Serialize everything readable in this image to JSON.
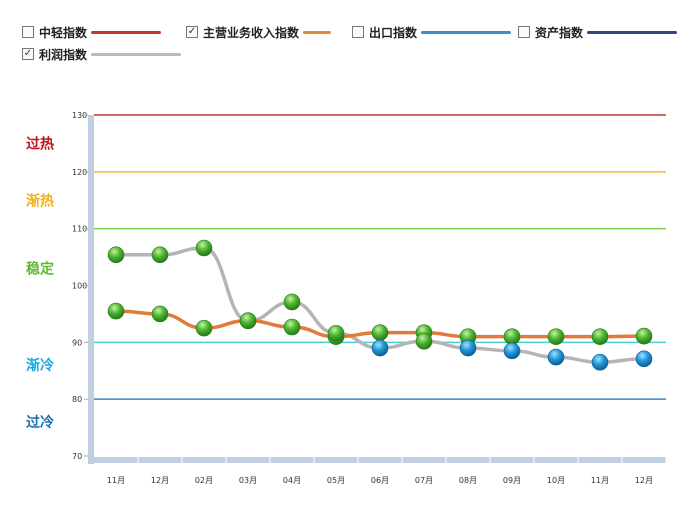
{
  "legend": [
    {
      "label": "中轻指数",
      "checked": false,
      "color": "#c0392b"
    },
    {
      "label": "主营业务收入指数",
      "checked": true,
      "color": "#e08a3c"
    },
    {
      "label": "出口指数",
      "checked": false,
      "color": "#3a8fcf"
    },
    {
      "label": "资产指数",
      "checked": false,
      "color": "#2c4a7c"
    },
    {
      "label": "利润指数",
      "checked": true,
      "color": "#bbbbbb"
    }
  ],
  "chart_data": {
    "type": "line",
    "categories": [
      "11月",
      "12月",
      "02月",
      "03月",
      "04月",
      "05月",
      "06月",
      "07月",
      "08月",
      "09月",
      "10月",
      "11月",
      "12月"
    ],
    "ylim": [
      70,
      130
    ],
    "yticks": [
      70,
      80,
      90,
      100,
      110,
      120,
      130
    ],
    "series": [
      {
        "name": "主营业务收入指数",
        "color": "#e07b39",
        "values": [
          95.5,
          95.0,
          92.5,
          93.8,
          92.7,
          91.0,
          91.7,
          91.7,
          91.0,
          91.0,
          91.0,
          91.0,
          91.1
        ]
      },
      {
        "name": "利润指数",
        "color": "#b5b5b5",
        "values": [
          105.4,
          105.4,
          106.6,
          93.8,
          97.1,
          91.6,
          89.0,
          90.2,
          89.0,
          88.5,
          87.4,
          86.5,
          87.1
        ]
      }
    ],
    "bands": [
      {
        "value": 130,
        "color": "#c0392b",
        "label": "过热",
        "label_at": 125,
        "label_color": "#c0121b"
      },
      {
        "value": 120,
        "color": "#f5b83a",
        "label": "渐热",
        "label_at": 115,
        "label_color": "#f0b020"
      },
      {
        "value": 110,
        "color": "#7ed04a",
        "label": "稳定",
        "label_at": 103,
        "label_color": "#5cba2e"
      },
      {
        "value": 90,
        "color": "#4ccfd0",
        "label": "渐冷",
        "label_at": 86,
        "label_color": "#1ea8d8"
      },
      {
        "value": 80,
        "color": "#3a82c4",
        "label": "过冷",
        "label_at": 76,
        "label_color": "#1a6fb0"
      }
    ],
    "marker_colors": {
      "above": "#3cab2c",
      "below": "#1c8fcf"
    }
  }
}
